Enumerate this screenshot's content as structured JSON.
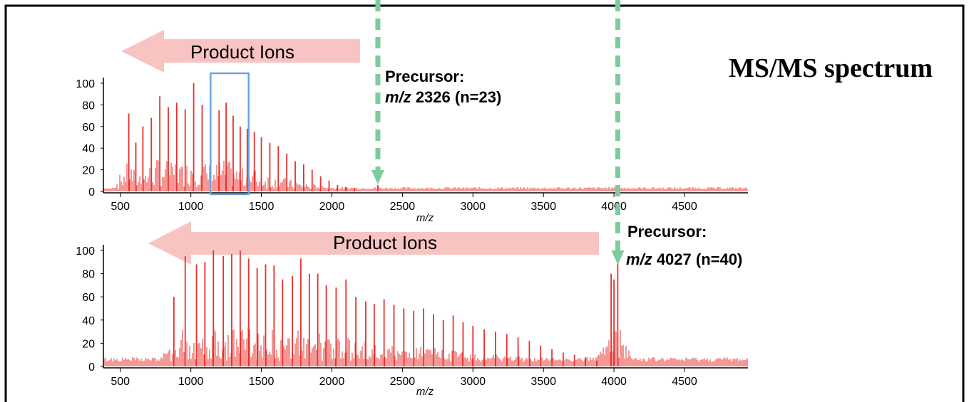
{
  "figure_title": "MS/MS spectrum",
  "colors": {
    "spectrum": "#e8302e",
    "arrow_fill": "#f7c4c2",
    "dashed": "#7ccc9c",
    "highlight_box": "#6aa6d9",
    "axis": "#000000"
  },
  "chart_data": [
    {
      "type": "line",
      "xlabel": "m/z",
      "ylabel": "",
      "xlim": [
        380,
        4950
      ],
      "ylim": [
        0,
        100
      ],
      "x_ticks": [
        500,
        1000,
        1500,
        2000,
        2500,
        3000,
        3500,
        4000,
        4500
      ],
      "y_ticks": [
        0,
        20,
        40,
        60,
        80,
        100
      ],
      "arrow_label": "Product Ions",
      "precursor": {
        "line1": "Precursor:",
        "mz_label": "m/z",
        "mz_value": "2326 (n=23)",
        "mz": 2326
      },
      "highlight_range": [
        1140,
        1410
      ],
      "series": [
        {
          "x": [
            560,
            610,
            660,
            720,
            780,
            840,
            900,
            960,
            1020,
            1080,
            1140,
            1200,
            1250,
            1300,
            1350,
            1400,
            1450,
            1500,
            1560,
            1620,
            1680,
            1740,
            1800,
            1860,
            1920,
            1980,
            2040,
            2100,
            2160,
            2326
          ],
          "y": [
            72,
            45,
            60,
            68,
            88,
            78,
            82,
            76,
            100,
            80,
            70,
            75,
            82,
            70,
            60,
            58,
            55,
            50,
            45,
            42,
            35,
            28,
            25,
            20,
            14,
            10,
            6,
            4,
            3,
            6
          ]
        }
      ]
    },
    {
      "type": "line",
      "xlabel": "m/z",
      "ylabel": "",
      "xlim": [
        380,
        4950
      ],
      "ylim": [
        0,
        100
      ],
      "x_ticks": [
        500,
        1000,
        1500,
        2000,
        2500,
        3000,
        3500,
        4000,
        4500
      ],
      "y_ticks": [
        0,
        20,
        40,
        60,
        80,
        100
      ],
      "arrow_label": "Product Ions",
      "precursor": {
        "line1": "Precursor:",
        "mz_label": "m/z",
        "mz_value": "4027 (n=40)",
        "mz": 4027
      },
      "series": [
        {
          "x": [
            880,
            960,
            1040,
            1100,
            1160,
            1230,
            1290,
            1350,
            1410,
            1470,
            1530,
            1590,
            1650,
            1720,
            1780,
            1840,
            1900,
            1960,
            2030,
            2100,
            2170,
            2240,
            2300,
            2370,
            2440,
            2510,
            2580,
            2650,
            2720,
            2790,
            2860,
            2930,
            3000,
            3080,
            3160,
            3240,
            3320,
            3400,
            3480,
            3560,
            3640,
            3720,
            3800,
            3880,
            3980,
            4000,
            4027
          ],
          "y": [
            60,
            95,
            88,
            90,
            100,
            95,
            97,
            100,
            93,
            85,
            88,
            87,
            75,
            78,
            93,
            80,
            80,
            70,
            68,
            75,
            60,
            56,
            54,
            58,
            53,
            50,
            48,
            50,
            45,
            40,
            44,
            38,
            35,
            32,
            30,
            28,
            25,
            22,
            18,
            15,
            12,
            10,
            8,
            5,
            80,
            75,
            92
          ]
        }
      ]
    }
  ]
}
